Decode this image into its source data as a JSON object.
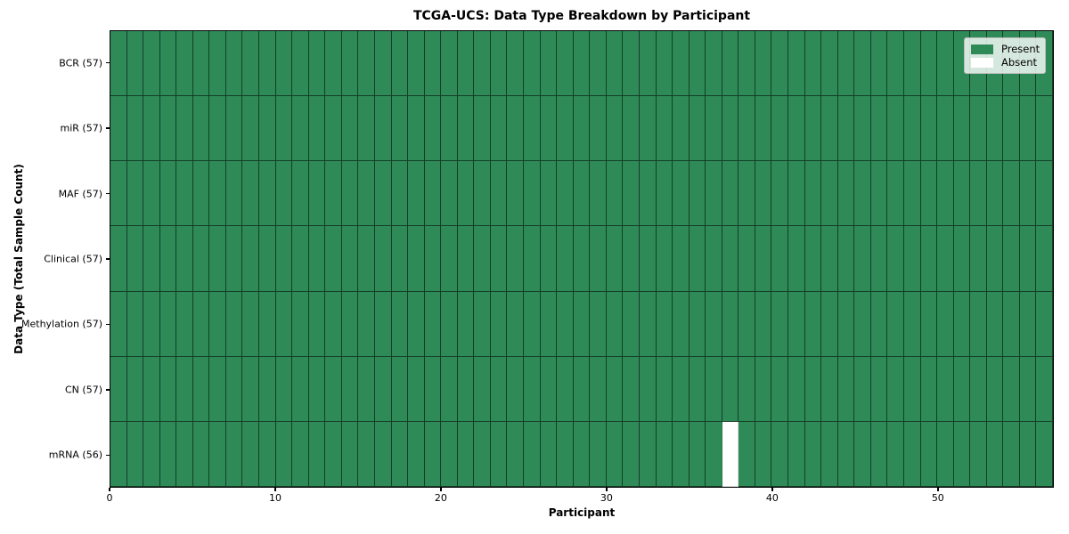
{
  "title": "TCGA-UCS: Data Type Breakdown by Participant",
  "chart_data": {
    "type": "heatmap",
    "title": "TCGA-UCS: Data Type Breakdown by Participant",
    "xlabel": "Participant",
    "ylabel": "Data Type (Total Sample Count)",
    "x_range": [
      0,
      57
    ],
    "n_participants": 57,
    "x_ticks": [
      0,
      10,
      20,
      30,
      40,
      50
    ],
    "grid": "cell-borders",
    "rows": [
      {
        "label": "BCR (57)",
        "total_samples": 57,
        "absent_participants": []
      },
      {
        "label": "miR (57)",
        "total_samples": 57,
        "absent_participants": []
      },
      {
        "label": "MAF (57)",
        "total_samples": 57,
        "absent_participants": []
      },
      {
        "label": "Clinical (57)",
        "total_samples": 57,
        "absent_participants": []
      },
      {
        "label": "Methylation (57)",
        "total_samples": 57,
        "absent_participants": []
      },
      {
        "label": "CN (57)",
        "total_samples": 57,
        "absent_participants": []
      },
      {
        "label": "mRNA (56)",
        "total_samples": 56,
        "absent_participants": [
          37
        ]
      }
    ],
    "legend": {
      "position": "upper right",
      "items": [
        {
          "label": "Present",
          "color": "#2e8b57"
        },
        {
          "label": "Absent",
          "color": "#ffffff"
        }
      ]
    },
    "colors": {
      "present": "#2e8b57",
      "absent": "#ffffff",
      "cell_edge": "rgba(0,0,0,0.55)",
      "absent_edge": "rgba(0,0,0,0.12)",
      "spine": "#000000",
      "background": "#ffffff"
    }
  }
}
